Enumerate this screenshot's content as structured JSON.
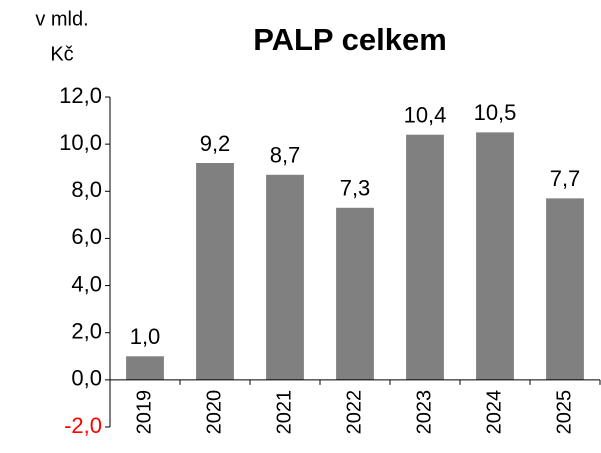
{
  "chart_data": {
    "type": "bar",
    "title": "PALP celkem",
    "ylabel_lines": [
      "v mld.",
      "Kč"
    ],
    "categories": [
      "2019",
      "2020",
      "2021",
      "2022",
      "2023",
      "2024",
      "2025"
    ],
    "values": [
      1.0,
      9.2,
      8.7,
      7.3,
      10.4,
      10.5,
      7.7
    ],
    "value_labels": [
      "1,0",
      "9,2",
      "8,7",
      "7,3",
      "10,4",
      "10,5",
      "7,7"
    ],
    "color": "#808080",
    "ylim": [
      -2,
      12
    ],
    "yticks": [
      {
        "value": -2,
        "label": "-2,0"
      },
      {
        "value": 0,
        "label": "0,0"
      },
      {
        "value": 2,
        "label": "2,0"
      },
      {
        "value": 4,
        "label": "4,0"
      },
      {
        "value": 6,
        "label": "6,0"
      },
      {
        "value": 8,
        "label": "8,0"
      },
      {
        "value": 10,
        "label": "10,0"
      },
      {
        "value": 12,
        "label": "12,0"
      }
    ],
    "negative_tick_color": "#ff0000",
    "grid": false
  }
}
